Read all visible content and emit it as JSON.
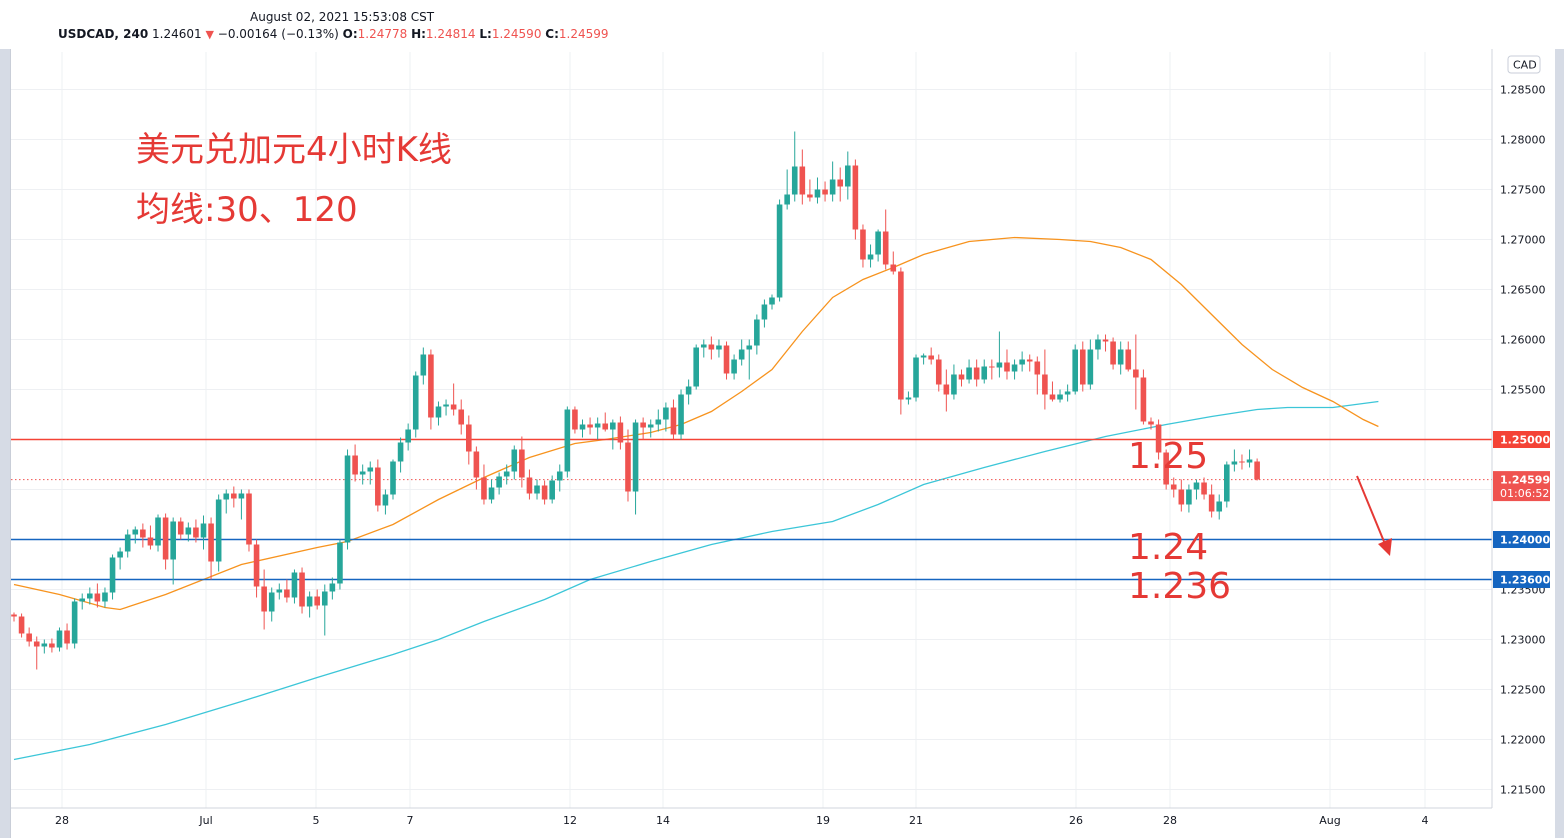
{
  "header": {
    "timestamp": "August 02, 2021 15:53:08 CST",
    "symbol": "USDCAD, 240",
    "last": "1.24601",
    "change": "−0.00164 (−0.13%)",
    "o_label": "O:",
    "o_value": "1.24778",
    "h_label": "H:",
    "h_value": "1.24814",
    "l_label": "L:",
    "l_value": "1.24590",
    "c_label": "C:",
    "c_value": "1.24599"
  },
  "annotations": {
    "title_line1": "美元兑加元4小时K线",
    "title_line2": "均线:30、120",
    "level_1": "1.25",
    "level_2": "1.24",
    "level_3": "1.236"
  },
  "colors": {
    "up": "#26a69a",
    "down": "#ef5350",
    "ma30": "#f7931e",
    "ma120": "#3cc6d8",
    "resistance": "#f44336",
    "support": "#1565c0",
    "annotation": "#e53935"
  },
  "chart_data": {
    "type": "candlestick",
    "title": "美元兑加元4小时K线",
    "currency_label": "CAD",
    "ylim": [
      1.211,
      1.2895
    ],
    "y_ticks": [
      "1.28500",
      "1.28000",
      "1.27500",
      "1.27000",
      "1.26500",
      "1.26000",
      "1.25500",
      "1.25000",
      "1.24500",
      "1.24000",
      "1.23500",
      "1.23000",
      "1.22500",
      "1.22000",
      "1.21500"
    ],
    "x_ticks": [
      "28",
      "Jul",
      "5",
      "7",
      "12",
      "14",
      "19",
      "21",
      "26",
      "28",
      "Aug",
      "4"
    ],
    "price_labels": [
      {
        "text": "1.25000",
        "value": 1.25,
        "color": "#f44336"
      },
      {
        "text": "1.24599",
        "value": 1.24599,
        "color": "#ef5350",
        "sub": "01:06:52"
      },
      {
        "text": "1.24000",
        "value": 1.24,
        "color": "#1565c0"
      },
      {
        "text": "1.23600",
        "value": 1.236,
        "color": "#1565c0"
      }
    ],
    "horizontal_lines": [
      {
        "value": 1.25,
        "color": "#f44336",
        "style": "solid"
      },
      {
        "value": 1.24,
        "color": "#1565c0",
        "style": "solid"
      },
      {
        "value": 1.236,
        "color": "#1565c0",
        "style": "solid"
      },
      {
        "value": 1.24599,
        "color": "#ef5350",
        "style": "dotted"
      }
    ],
    "candles": [
      [
        1.2325,
        1.2327,
        1.2318,
        1.2323
      ],
      [
        1.2323,
        1.2326,
        1.2302,
        1.2306
      ],
      [
        1.2306,
        1.2312,
        1.2293,
        1.2298
      ],
      [
        1.2298,
        1.2303,
        1.227,
        1.2293
      ],
      [
        1.2293,
        1.23,
        1.2286,
        1.2296
      ],
      [
        1.2296,
        1.2301,
        1.2287,
        1.2292
      ],
      [
        1.2292,
        1.2312,
        1.2288,
        1.2309
      ],
      [
        1.2309,
        1.2316,
        1.229,
        1.2296
      ],
      [
        1.2296,
        1.2341,
        1.2291,
        1.2338
      ],
      [
        1.2338,
        1.2346,
        1.233,
        1.2341
      ],
      [
        1.2341,
        1.2352,
        1.2335,
        1.2346
      ],
      [
        1.2346,
        1.2356,
        1.2332,
        1.2338
      ],
      [
        1.2338,
        1.2352,
        1.2332,
        1.2347
      ],
      [
        1.2347,
        1.2385,
        1.234,
        1.2382
      ],
      [
        1.2382,
        1.2392,
        1.237,
        1.2388
      ],
      [
        1.2388,
        1.241,
        1.2382,
        1.2405
      ],
      [
        1.2405,
        1.2413,
        1.2396,
        1.241
      ],
      [
        1.241,
        1.2416,
        1.2392,
        1.2402
      ],
      [
        1.2402,
        1.2414,
        1.239,
        1.2394
      ],
      [
        1.2394,
        1.2425,
        1.2388,
        1.2422
      ],
      [
        1.2422,
        1.2426,
        1.237,
        1.238
      ],
      [
        1.238,
        1.2422,
        1.2355,
        1.2418
      ],
      [
        1.2418,
        1.2422,
        1.24,
        1.2405
      ],
      [
        1.2405,
        1.2417,
        1.2398,
        1.2412
      ],
      [
        1.2412,
        1.242,
        1.2397,
        1.2402
      ],
      [
        1.2402,
        1.2424,
        1.239,
        1.2416
      ],
      [
        1.2416,
        1.2422,
        1.236,
        1.2378
      ],
      [
        1.2378,
        1.2445,
        1.2368,
        1.244
      ],
      [
        1.244,
        1.245,
        1.2426,
        1.2446
      ],
      [
        1.2446,
        1.2453,
        1.2432,
        1.2441
      ],
      [
        1.2441,
        1.245,
        1.242,
        1.2446
      ],
      [
        1.2446,
        1.245,
        1.2388,
        1.2395
      ],
      [
        1.2395,
        1.24,
        1.2342,
        1.2353
      ],
      [
        1.2353,
        1.237,
        1.231,
        1.2328
      ],
      [
        1.2328,
        1.2352,
        1.2318,
        1.2347
      ],
      [
        1.2347,
        1.2356,
        1.234,
        1.235
      ],
      [
        1.235,
        1.236,
        1.2337,
        1.2342
      ],
      [
        1.2342,
        1.237,
        1.2336,
        1.2367
      ],
      [
        1.2367,
        1.2372,
        1.2326,
        1.2333
      ],
      [
        1.2333,
        1.2348,
        1.2322,
        1.2343
      ],
      [
        1.2343,
        1.235,
        1.233,
        1.2334
      ],
      [
        1.2334,
        1.2355,
        1.2304,
        1.2348
      ],
      [
        1.2348,
        1.2362,
        1.234,
        1.2356
      ],
      [
        1.2356,
        1.24,
        1.235,
        1.2397
      ],
      [
        1.2397,
        1.249,
        1.239,
        1.2484
      ],
      [
        1.2484,
        1.2495,
        1.2458,
        1.2465
      ],
      [
        1.2465,
        1.2475,
        1.2455,
        1.2468
      ],
      [
        1.2468,
        1.2478,
        1.2455,
        1.2472
      ],
      [
        1.2472,
        1.248,
        1.2428,
        1.2434
      ],
      [
        1.2434,
        1.245,
        1.2425,
        1.2445
      ],
      [
        1.2445,
        1.248,
        1.244,
        1.2478
      ],
      [
        1.2478,
        1.2502,
        1.2467,
        1.2497
      ],
      [
        1.2497,
        1.2516,
        1.2489,
        1.251
      ],
      [
        1.251,
        1.2568,
        1.2502,
        1.2564
      ],
      [
        1.2564,
        1.2592,
        1.2555,
        1.2585
      ],
      [
        1.2585,
        1.259,
        1.251,
        1.2522
      ],
      [
        1.2522,
        1.2538,
        1.2514,
        1.2533
      ],
      [
        1.2533,
        1.254,
        1.2524,
        1.2535
      ],
      [
        1.2535,
        1.2556,
        1.2524,
        1.253
      ],
      [
        1.253,
        1.254,
        1.2505,
        1.2515
      ],
      [
        1.2515,
        1.2524,
        1.2475,
        1.2488
      ],
      [
        1.2488,
        1.2493,
        1.245,
        1.2462
      ],
      [
        1.2462,
        1.2475,
        1.2435,
        1.244
      ],
      [
        1.244,
        1.246,
        1.2436,
        1.2452
      ],
      [
        1.2452,
        1.2467,
        1.2445,
        1.2463
      ],
      [
        1.2463,
        1.2475,
        1.2455,
        1.2468
      ],
      [
        1.2468,
        1.2494,
        1.246,
        1.249
      ],
      [
        1.249,
        1.2503,
        1.2452,
        1.2462
      ],
      [
        1.2462,
        1.247,
        1.244,
        1.2446
      ],
      [
        1.2446,
        1.246,
        1.244,
        1.2454
      ],
      [
        1.2454,
        1.2459,
        1.2435,
        1.244
      ],
      [
        1.244,
        1.2464,
        1.2436,
        1.2459
      ],
      [
        1.2459,
        1.2475,
        1.2448,
        1.2468
      ],
      [
        1.2468,
        1.2533,
        1.2462,
        1.253
      ],
      [
        1.253,
        1.2533,
        1.2506,
        1.251
      ],
      [
        1.251,
        1.252,
        1.2502,
        1.2515
      ],
      [
        1.2515,
        1.2522,
        1.2505,
        1.2512
      ],
      [
        1.2512,
        1.2522,
        1.25,
        1.2516
      ],
      [
        1.2516,
        1.2527,
        1.2508,
        1.251
      ],
      [
        1.251,
        1.252,
        1.249,
        1.2517
      ],
      [
        1.2517,
        1.2523,
        1.249,
        1.2497
      ],
      [
        1.2497,
        1.251,
        1.2438,
        1.2448
      ],
      [
        1.2448,
        1.252,
        1.2425,
        1.2517
      ],
      [
        1.2517,
        1.2522,
        1.25,
        1.2512
      ],
      [
        1.2512,
        1.252,
        1.2502,
        1.2515
      ],
      [
        1.2515,
        1.253,
        1.2508,
        1.252
      ],
      [
        1.252,
        1.2537,
        1.2508,
        1.2532
      ],
      [
        1.2532,
        1.254,
        1.25,
        1.2505
      ],
      [
        1.2505,
        1.255,
        1.25,
        1.2545
      ],
      [
        1.2545,
        1.256,
        1.2535,
        1.2553
      ],
      [
        1.2553,
        1.2595,
        1.255,
        1.2592
      ],
      [
        1.2592,
        1.26,
        1.2582,
        1.2595
      ],
      [
        1.2595,
        1.2603,
        1.258,
        1.259
      ],
      [
        1.259,
        1.26,
        1.2582,
        1.2594
      ],
      [
        1.2594,
        1.2598,
        1.256,
        1.2566
      ],
      [
        1.2566,
        1.2585,
        1.256,
        1.258
      ],
      [
        1.258,
        1.26,
        1.2574,
        1.259
      ],
      [
        1.259,
        1.26,
        1.256,
        1.2594
      ],
      [
        1.2594,
        1.2625,
        1.2585,
        1.262
      ],
      [
        1.262,
        1.264,
        1.2612,
        1.2635
      ],
      [
        1.2635,
        1.2645,
        1.263,
        1.2642
      ],
      [
        1.2642,
        1.274,
        1.2638,
        1.2735
      ],
      [
        1.2735,
        1.277,
        1.273,
        1.2745
      ],
      [
        1.2745,
        1.2808,
        1.2738,
        1.2773
      ],
      [
        1.2773,
        1.279,
        1.2735,
        1.2745
      ],
      [
        1.2745,
        1.276,
        1.2738,
        1.2742
      ],
      [
        1.2742,
        1.2762,
        1.2736,
        1.275
      ],
      [
        1.275,
        1.2758,
        1.2738,
        1.2745
      ],
      [
        1.2745,
        1.2778,
        1.2738,
        1.276
      ],
      [
        1.276,
        1.2772,
        1.2738,
        1.2753
      ],
      [
        1.2753,
        1.2788,
        1.274,
        1.2774
      ],
      [
        1.2774,
        1.278,
        1.27,
        1.271
      ],
      [
        1.271,
        1.2715,
        1.2672,
        1.268
      ],
      [
        1.268,
        1.2695,
        1.2672,
        1.2685
      ],
      [
        1.2685,
        1.271,
        1.2678,
        1.2708
      ],
      [
        1.2708,
        1.273,
        1.267,
        1.2675
      ],
      [
        1.2675,
        1.2688,
        1.2665,
        1.2668
      ],
      [
        1.2668,
        1.2672,
        1.2525,
        1.254
      ],
      [
        1.254,
        1.2548,
        1.2535,
        1.2542
      ],
      [
        1.2542,
        1.2585,
        1.2538,
        1.2582
      ],
      [
        1.2582,
        1.2586,
        1.2575,
        1.2584
      ],
      [
        1.2584,
        1.2592,
        1.2575,
        1.258
      ],
      [
        1.258,
        1.2585,
        1.2548,
        1.2555
      ],
      [
        1.2555,
        1.257,
        1.2528,
        1.2545
      ],
      [
        1.2545,
        1.2575,
        1.254,
        1.2565
      ],
      [
        1.2565,
        1.257,
        1.2553,
        1.256
      ],
      [
        1.256,
        1.258,
        1.2556,
        1.2572
      ],
      [
        1.2572,
        1.258,
        1.2553,
        1.256
      ],
      [
        1.256,
        1.258,
        1.2556,
        1.2573
      ],
      [
        1.2573,
        1.258,
        1.256,
        1.2572
      ],
      [
        1.2572,
        1.2608,
        1.2562,
        1.2577
      ],
      [
        1.2577,
        1.259,
        1.256,
        1.2568
      ],
      [
        1.2568,
        1.258,
        1.256,
        1.2575
      ],
      [
        1.2575,
        1.2588,
        1.2568,
        1.258
      ],
      [
        1.258,
        1.2585,
        1.2568,
        1.2578
      ],
      [
        1.2578,
        1.2583,
        1.2545,
        1.2565
      ],
      [
        1.2565,
        1.259,
        1.253,
        1.2545
      ],
      [
        1.2545,
        1.2558,
        1.2538,
        1.254
      ],
      [
        1.254,
        1.255,
        1.2537,
        1.2545
      ],
      [
        1.2545,
        1.2555,
        1.2538,
        1.2548
      ],
      [
        1.2548,
        1.2595,
        1.2545,
        1.259
      ],
      [
        1.259,
        1.2598,
        1.2548,
        1.2555
      ],
      [
        1.2555,
        1.26,
        1.255,
        1.259
      ],
      [
        1.259,
        1.2605,
        1.258,
        1.26
      ],
      [
        1.26,
        1.2605,
        1.2588,
        1.2598
      ],
      [
        1.2598,
        1.2602,
        1.257,
        1.2575
      ],
      [
        1.2575,
        1.2598,
        1.2565,
        1.259
      ],
      [
        1.259,
        1.2598,
        1.2568,
        1.257
      ],
      [
        1.257,
        1.2605,
        1.253,
        1.2562
      ],
      [
        1.2562,
        1.257,
        1.2515,
        1.2518
      ],
      [
        1.2518,
        1.2522,
        1.251,
        1.2515
      ],
      [
        1.2515,
        1.252,
        1.248,
        1.2487
      ],
      [
        1.2487,
        1.249,
        1.245,
        1.2455
      ],
      [
        1.2455,
        1.2462,
        1.2442,
        1.245
      ],
      [
        1.245,
        1.246,
        1.2428,
        1.2435
      ],
      [
        1.2435,
        1.2455,
        1.2427,
        1.245
      ],
      [
        1.245,
        1.246,
        1.244,
        1.2457
      ],
      [
        1.2457,
        1.2462,
        1.244,
        1.2445
      ],
      [
        1.2445,
        1.2455,
        1.2422,
        1.2428
      ],
      [
        1.2428,
        1.2445,
        1.242,
        1.2438
      ],
      [
        1.2438,
        1.2478,
        1.2432,
        1.2475
      ],
      [
        1.2475,
        1.249,
        1.2468,
        1.2478
      ],
      [
        1.2478,
        1.2485,
        1.247,
        1.2477
      ],
      [
        1.2477,
        1.249,
        1.2472,
        1.248
      ],
      [
        1.2478,
        1.2481,
        1.2459,
        1.246
      ]
    ],
    "ma30": [
      [
        0,
        1.2355
      ],
      [
        6,
        1.2345
      ],
      [
        12,
        1.2332
      ],
      [
        14,
        1.233
      ],
      [
        20,
        1.2345
      ],
      [
        30,
        1.2375
      ],
      [
        40,
        1.2392
      ],
      [
        44,
        1.2398
      ],
      [
        50,
        1.2415
      ],
      [
        56,
        1.244
      ],
      [
        62,
        1.2462
      ],
      [
        68,
        1.2482
      ],
      [
        74,
        1.2496
      ],
      [
        78,
        1.25
      ],
      [
        84,
        1.2507
      ],
      [
        88,
        1.2515
      ],
      [
        92,
        1.2528
      ],
      [
        96,
        1.2548
      ],
      [
        100,
        1.257
      ],
      [
        104,
        1.2608
      ],
      [
        108,
        1.2642
      ],
      [
        112,
        1.266
      ],
      [
        116,
        1.2672
      ],
      [
        120,
        1.2685
      ],
      [
        126,
        1.2698
      ],
      [
        132,
        1.2702
      ],
      [
        138,
        1.27
      ],
      [
        142,
        1.2698
      ],
      [
        146,
        1.2692
      ],
      [
        150,
        1.268
      ],
      [
        154,
        1.2655
      ],
      [
        158,
        1.2625
      ],
      [
        162,
        1.2595
      ],
      [
        166,
        1.257
      ],
      [
        170,
        1.2552
      ],
      [
        174,
        1.2538
      ],
      [
        178,
        1.252
      ],
      [
        180,
        1.2513
      ]
    ],
    "ma120": [
      [
        0,
        1.218
      ],
      [
        10,
        1.2195
      ],
      [
        20,
        1.2215
      ],
      [
        30,
        1.2238
      ],
      [
        40,
        1.2262
      ],
      [
        50,
        1.2285
      ],
      [
        56,
        1.23
      ],
      [
        62,
        1.2318
      ],
      [
        70,
        1.234
      ],
      [
        76,
        1.236
      ],
      [
        84,
        1.2378
      ],
      [
        92,
        1.2395
      ],
      [
        100,
        1.2408
      ],
      [
        108,
        1.2418
      ],
      [
        114,
        1.2435
      ],
      [
        120,
        1.2455
      ],
      [
        128,
        1.2472
      ],
      [
        136,
        1.2488
      ],
      [
        144,
        1.2503
      ],
      [
        152,
        1.2515
      ],
      [
        158,
        1.2523
      ],
      [
        164,
        1.253
      ],
      [
        168,
        1.2532
      ],
      [
        174,
        1.2532
      ],
      [
        180,
        1.2538
      ]
    ]
  }
}
